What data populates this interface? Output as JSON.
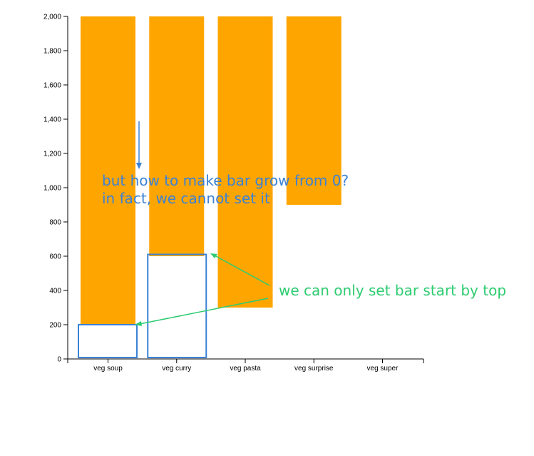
{
  "chart_data": {
    "type": "bar",
    "categories": [
      "veg soup",
      "veg curry",
      "veg pasta",
      "veg surprise",
      "veg super"
    ],
    "values": [
      200,
      600,
      300,
      900,
      2000
    ],
    "ylim": [
      0,
      2000
    ],
    "yticks": [
      0,
      200,
      400,
      600,
      800,
      1000,
      1200,
      1400,
      1600,
      1800,
      2000
    ],
    "ytick_labels": [
      "0",
      "200",
      "400",
      "600",
      "800",
      "1,000",
      "1,200",
      "1,400",
      "1,600",
      "1,800",
      "2,000"
    ],
    "bars_hang_from_top": true,
    "grid": false,
    "title": "",
    "xlabel": "",
    "ylabel": "",
    "bar_color": "#ffa500",
    "outline_color": "#3a82d6",
    "outlined_categories": [
      "veg soup",
      "veg curry"
    ]
  },
  "annotations": {
    "blue_line1": "but how to make bar grow from 0?",
    "blue_line2": "in fact, we cannot set it",
    "green_text": "we can only set bar start by top",
    "blue_color": "#3a82d6",
    "green_color": "#2ecc71"
  }
}
